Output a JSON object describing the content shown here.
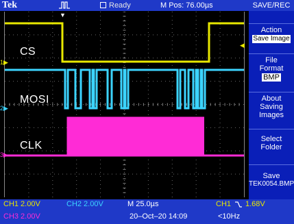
{
  "brand": "Tek",
  "acquisition": {
    "state": "Ready"
  },
  "horizontal_position": "M Pos: 76.00µs",
  "channel_labels": {
    "ch1": "CS",
    "ch2": "MOSI",
    "ch3": "CLK"
  },
  "channel_markers": {
    "ch1": "1",
    "ch2": "2",
    "ch3": "3"
  },
  "side_menu": {
    "title": "SAVE/REC",
    "items": [
      {
        "title": "Action",
        "value": "Save Image"
      },
      {
        "title": "File Format",
        "value": "BMP"
      },
      {
        "title": "About Saving Images",
        "value": ""
      },
      {
        "title": "Select Folder",
        "value": ""
      },
      {
        "title": "Save",
        "value": "TEK0054.BMP"
      }
    ]
  },
  "status": {
    "ch1": "CH1  2.00V",
    "ch2": "CH2  2.00V",
    "ch3": "CH3  2.00V",
    "timebase": "M 25.0µs",
    "datetime": "20–Oct–20 14:09",
    "trigger_source": "CH1",
    "trigger_level": "1.68V",
    "trigger_freq": "<10Hz"
  },
  "colors": {
    "ch1": "#e8e800",
    "ch2": "#3cd4ff",
    "ch3": "#ff2bd6",
    "bar": "#1f39c8",
    "menu": "#0a1fb8"
  },
  "icons": {
    "acquisition": "pulse-icon",
    "ready": "stop-square-icon",
    "trigger_position": "trigger-arrow-icon",
    "trigger_level": "trigger-level-arrow-icon",
    "trigger_slope": "falling-edge-icon"
  }
}
